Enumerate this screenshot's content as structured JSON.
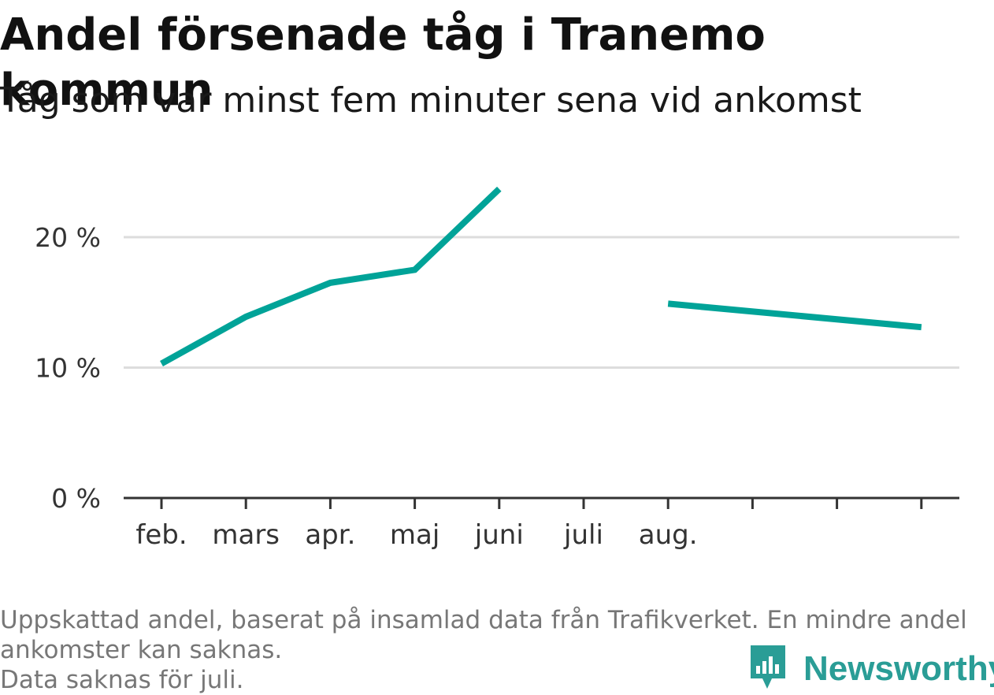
{
  "header": {
    "title": "Andel försenade tåg i Tranemo kommun",
    "subtitle": "Tåg som var minst fem minuter sena vid ankomst"
  },
  "chart_data": {
    "type": "line",
    "title": "Andel försenade tåg i Tranemo kommun",
    "subtitle": "Tåg som var minst fem minuter sena vid ankomst",
    "categories": [
      "feb.",
      "mars",
      "apr.",
      "maj",
      "juni",
      "juli",
      "aug.",
      "",
      "",
      ""
    ],
    "series": [
      {
        "color": "#00a398",
        "values": [
          10.3,
          13.9,
          16.5,
          17.5,
          23.7,
          null,
          14.9,
          null,
          null,
          13.1
        ]
      }
    ],
    "yticks": [
      0,
      10,
      20
    ],
    "ytick_labels": [
      "0 %",
      "10 %",
      "20 %"
    ],
    "ylim": [
      0,
      25
    ],
    "grid": true,
    "legend": "none"
  },
  "footnote": {
    "line1": "Uppskattad andel, baserat på insamlad data från Trafikverket. En mindre andel ankomster kan saknas.",
    "line2": "Data saknas för juli."
  },
  "brand": {
    "name": "Newsworthy",
    "icon": "bar-chart-speech-bubble-icon",
    "color": "#2a9d96"
  }
}
